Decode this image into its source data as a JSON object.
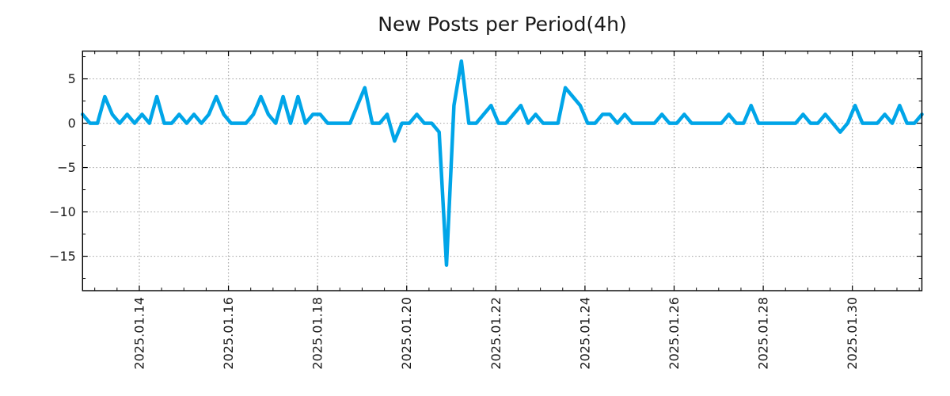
{
  "chart_data": {
    "type": "line",
    "title": "New Posts per Period(4h)",
    "xlabel": "",
    "ylabel": "",
    "grid": "dotted-major",
    "legend": "none",
    "axis_color": "#000000",
    "grid_color": "#aaaaaa",
    "text_color": "#1a1a1a",
    "x_tick_labels": [
      "2025.01.14",
      "2025.01.16",
      "2025.01.18",
      "2025.01.20",
      "2025.01.22",
      "2025.01.24",
      "2025.01.26",
      "2025.01.28",
      "2025.01.30"
    ],
    "x_first_tick_index": 7.64,
    "x_tick_index_step": 12,
    "x_minor_index_step": 3,
    "y_major_ticks": [
      5,
      0,
      -5,
      -10,
      -15
    ],
    "y_tick_labels": [
      "5",
      "0",
      "−5",
      "−10",
      "−15"
    ],
    "y_minor_ticks": [
      7.5,
      2.5,
      -2.5,
      -7.5,
      -12.5,
      -17.5
    ],
    "ylim": [
      -18.88,
      8.13
    ],
    "period_hours": 4,
    "series": [
      {
        "name": "new-posts",
        "color": "#00a5e8",
        "values": [
          1,
          0,
          0,
          3,
          1,
          0,
          1,
          0,
          1,
          0,
          3,
          0,
          0,
          1,
          0,
          1,
          0,
          1,
          3,
          1,
          0,
          0,
          0,
          1,
          3,
          1,
          0,
          3,
          0,
          3,
          0,
          1,
          1,
          0,
          0,
          0,
          0,
          2,
          4,
          0,
          0,
          1,
          -2,
          0,
          0,
          1,
          0,
          0,
          -1,
          -16,
          2,
          7,
          0,
          0,
          1,
          2,
          0,
          0,
          1,
          2,
          0,
          1,
          0,
          0,
          0,
          4,
          3,
          2,
          0,
          0,
          1,
          1,
          0,
          1,
          0,
          0,
          0,
          0,
          1,
          0,
          0,
          1,
          0,
          0,
          0,
          0,
          0,
          1,
          0,
          0,
          2,
          0,
          0,
          0,
          0,
          0,
          0,
          1,
          0,
          0,
          1,
          0,
          -1,
          0,
          2,
          0,
          0,
          0,
          1,
          0,
          2,
          0,
          0,
          1
        ]
      }
    ]
  }
}
